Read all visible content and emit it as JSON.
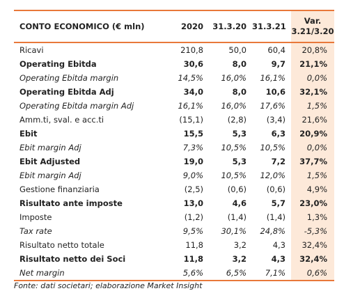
{
  "table": {
    "title": "CONTO ECONOMICO (€ mln)",
    "columns": [
      "2020",
      "31.3.20",
      "31.3.21"
    ],
    "var_header_line1": "Var.",
    "var_header_line2": "3.21/3.20",
    "rows": [
      {
        "label": "Ricavi",
        "style": "normal",
        "values": [
          "210,8",
          "50,0",
          "60,4",
          "20,8%"
        ]
      },
      {
        "label": "Operating Ebitda",
        "style": "bold",
        "values": [
          "30,6",
          "8,0",
          "9,7",
          "21,1%"
        ]
      },
      {
        "label": "Operating Ebitda margin",
        "style": "italic",
        "values": [
          "14,5%",
          "16,0%",
          "16,1%",
          "0,0%"
        ]
      },
      {
        "label": "Operating Ebitda Adj",
        "style": "bold",
        "values": [
          "34,0",
          "8,0",
          "10,6",
          "32,1%"
        ]
      },
      {
        "label": "Operating Ebitda margin Adj",
        "style": "italic",
        "values": [
          "16,1%",
          "16,0%",
          "17,6%",
          "1,5%"
        ]
      },
      {
        "label": "Amm.ti, sval. e acc.ti",
        "style": "normal",
        "values": [
          "(15,1)",
          "(2,8)",
          "(3,4)",
          "21,6%"
        ]
      },
      {
        "label": "Ebit",
        "style": "bold",
        "values": [
          "15,5",
          "5,3",
          "6,3",
          "20,9%"
        ]
      },
      {
        "label": "Ebit margin Adj",
        "style": "italic",
        "values": [
          "7,3%",
          "10,5%",
          "10,5%",
          "0,0%"
        ]
      },
      {
        "label": "Ebit Adjusted",
        "style": "bold",
        "values": [
          "19,0",
          "5,3",
          "7,2",
          "37,7%"
        ]
      },
      {
        "label": "Ebit margin Adj",
        "style": "italic",
        "values": [
          "9,0%",
          "10,5%",
          "12,0%",
          "1,5%"
        ]
      },
      {
        "label": "Gestione finanziaria",
        "style": "normal",
        "values": [
          "(2,5)",
          "(0,6)",
          "(0,6)",
          "4,9%"
        ]
      },
      {
        "label": "Risultato ante imposte",
        "style": "bold",
        "values": [
          "13,0",
          "4,6",
          "5,7",
          "23,0%"
        ]
      },
      {
        "label": "Imposte",
        "style": "normal",
        "values": [
          "(1,2)",
          "(1,4)",
          "(1,4)",
          "1,3%"
        ]
      },
      {
        "label": "Tax rate",
        "style": "italic",
        "values": [
          "9,5%",
          "30,1%",
          "24,8%",
          "-5,3%"
        ]
      },
      {
        "label": "Risultato netto totale",
        "style": "normal",
        "values": [
          "11,8",
          "3,2",
          "4,3",
          "32,4%"
        ]
      },
      {
        "label": "Risultato netto dei Soci",
        "style": "bold",
        "values": [
          "11,8",
          "3,2",
          "4,3",
          "32,4%"
        ]
      },
      {
        "label": "Net margin",
        "style": "italic",
        "values": [
          "5,6%",
          "6,5%",
          "7,1%",
          "0,6%"
        ]
      }
    ]
  },
  "source": "Fonte: dati societari; elaborazione Market Insight",
  "colors": {
    "accent_line": "#e8783a",
    "var_column_bg": "#fde9d9"
  }
}
